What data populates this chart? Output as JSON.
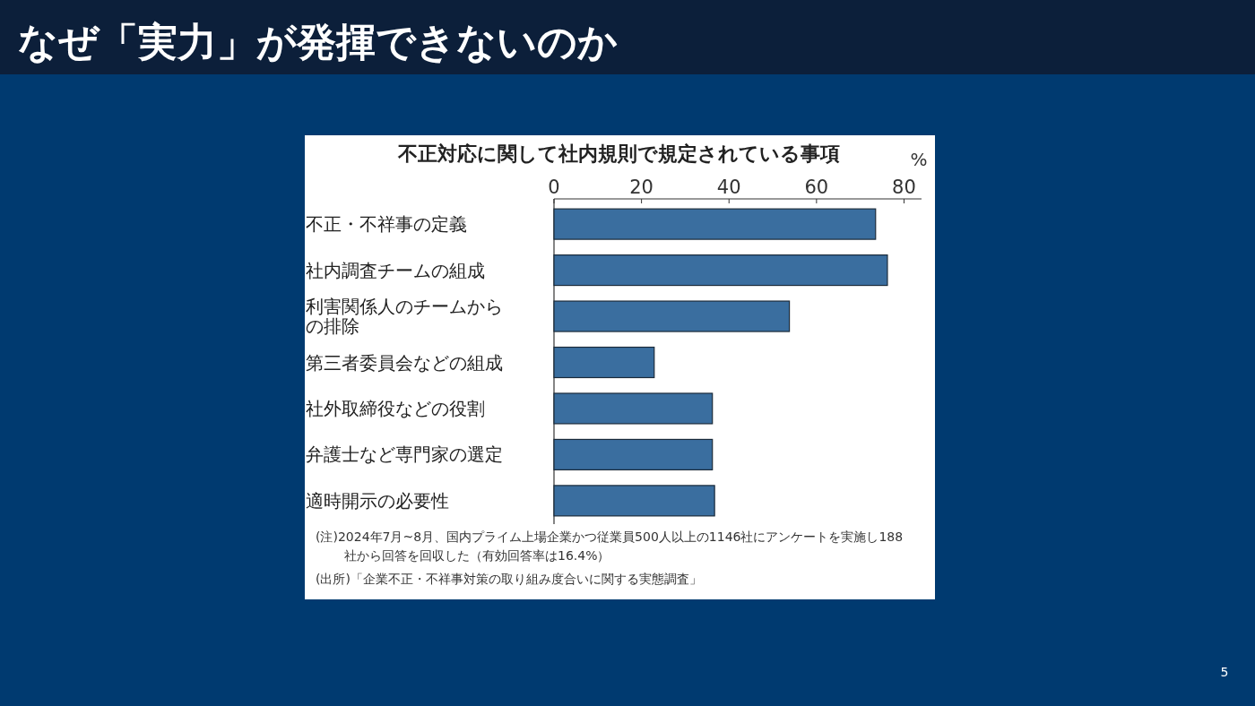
{
  "chart_data": {
    "type": "bar",
    "orientation": "horizontal",
    "title": "なぜ「実力」が発揮できないのか",
    "subtitle": "不正対応に関して社内規則で規定されている事項",
    "xlabel": "%",
    "categories": [
      "不正・不祥事の定義",
      "社内調査チームの組成",
      "利害関係人のチームからの排除",
      "第三者委員会などの組成",
      "社外取締役などの役割",
      "弁護士など専門家の選定",
      "適時開示の必要性"
    ],
    "values": [
      73.5,
      76.2,
      53.8,
      22.9,
      36.2,
      36.2,
      36.7
    ],
    "color": "#3a6e9f",
    "xlim": [
      0,
      84
    ],
    "xticks": [
      0,
      20,
      40,
      60,
      80
    ],
    "grid": false,
    "annotations": [
      "(注)2024年7月~8月、国内プライム上場企業かつ従業員500人以上の1146社にアンケートを実施し188社から回答を回収した（有効回答率は16.4%）",
      "(出所)「企業不正・不祥事対策の取り組み度合いに関する実態調査」",
      "5"
    ]
  }
}
